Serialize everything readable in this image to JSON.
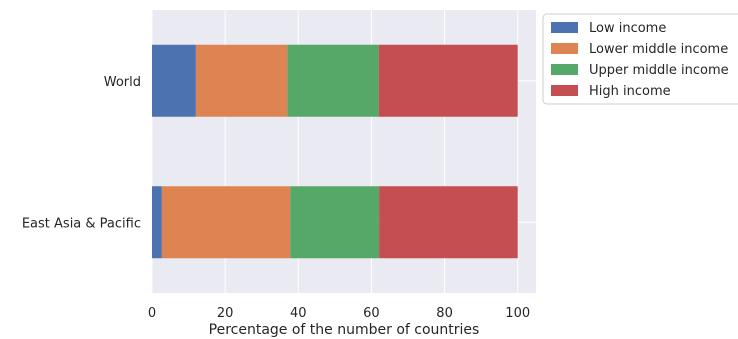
{
  "chart_data": {
    "type": "bar",
    "orientation": "horizontal",
    "stacked": true,
    "categories": [
      "World",
      "East Asia & Pacific"
    ],
    "series": [
      {
        "name": "Low income",
        "values": [
          12.0,
          2.7
        ],
        "color": "#4c72b0"
      },
      {
        "name": "Lower middle income",
        "values": [
          25.0,
          35.1
        ],
        "color": "#dd8452"
      },
      {
        "name": "Upper middle income",
        "values": [
          25.0,
          24.3
        ],
        "color": "#55a868"
      },
      {
        "name": "High income",
        "values": [
          38.0,
          37.9
        ],
        "color": "#c44e52"
      }
    ],
    "title": "",
    "xlabel": "Percentage of the number of countries",
    "ylabel": "",
    "xlim": [
      0,
      105
    ],
    "xticks": [
      0,
      20,
      40,
      60,
      80,
      100
    ],
    "grid": true,
    "legend_position": "outside top-right",
    "background": "#eaeaf2"
  }
}
